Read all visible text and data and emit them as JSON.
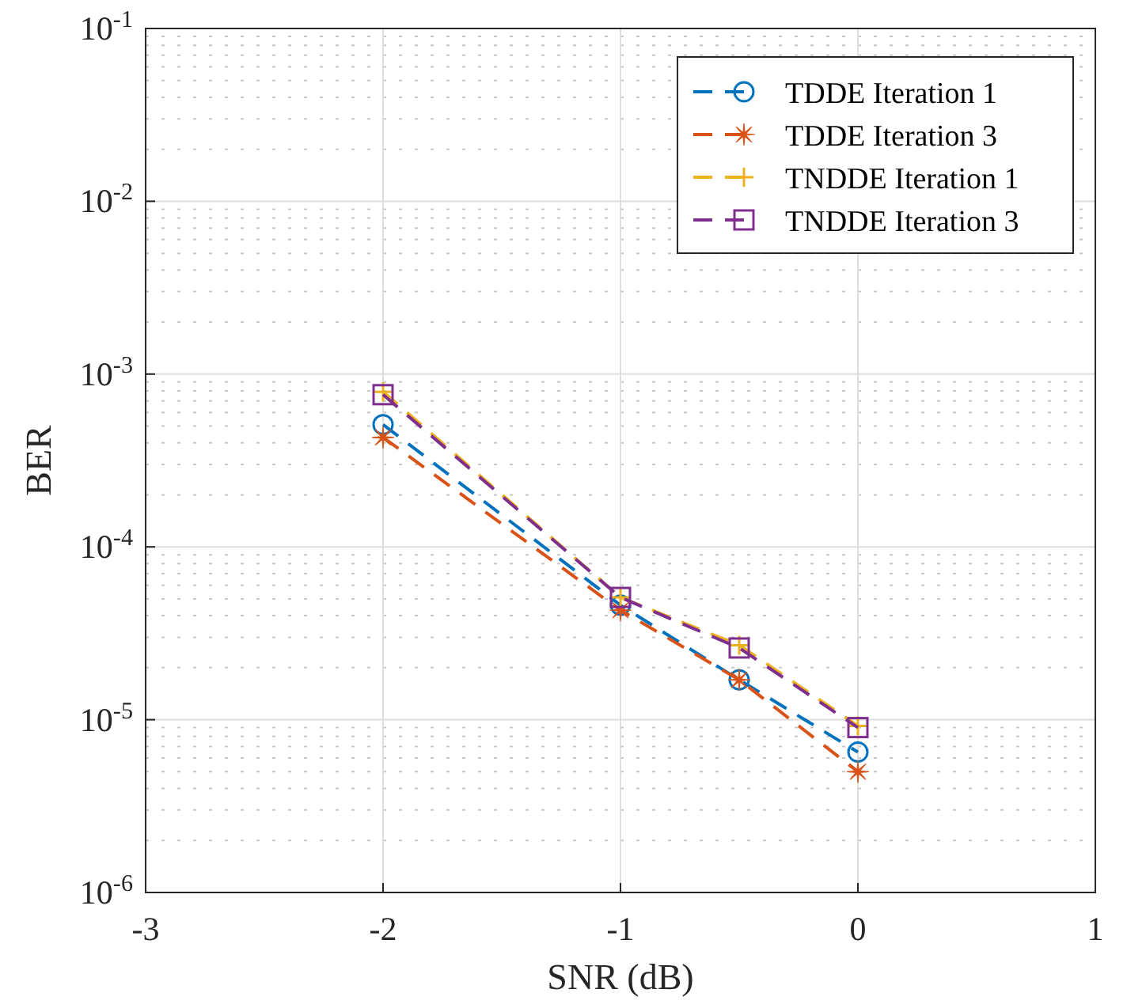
{
  "chart_data": {
    "type": "line",
    "xlabel": "SNR (dB)",
    "ylabel": "BER",
    "log": "y",
    "grid": true,
    "legend": "top right",
    "line_style": "dashed",
    "x": [
      -2,
      -1,
      -0.5,
      0
    ],
    "xlim": [
      -3,
      1
    ],
    "xticks": [
      -3,
      -2,
      -1,
      0,
      1
    ],
    "ylim": [
      1e-06,
      0.1
    ],
    "yticks": [
      {
        "value": 1e-06,
        "label": "10$^{-6}$"
      },
      {
        "value": 1e-05,
        "label": "10$^{-5}$"
      },
      {
        "value": 0.0001,
        "label": "10$^{-4}$"
      },
      {
        "value": 0.001,
        "label": "10$^{-3}$"
      },
      {
        "value": 0.01,
        "label": "10$^{-2}$"
      },
      {
        "value": 0.1,
        "label": "10$^{-1}$"
      }
    ],
    "series": [
      {
        "name": "TDDE Iteration 1",
        "color": "#0072bd",
        "marker": "circle",
        "values": [
          0.00051,
          4.6e-05,
          1.7e-05,
          6.5e-06
        ]
      },
      {
        "name": "TDDE Iteration 3",
        "color": "#d95319",
        "marker": "star",
        "values": [
          0.00043,
          4.3e-05,
          1.7e-05,
          5e-06
        ]
      },
      {
        "name": "TNDDE Iteration 1",
        "color": "#edb120",
        "marker": "cross",
        "values": [
          0.00079,
          5.1e-05,
          2.7e-05,
          9.2e-06
        ]
      },
      {
        "name": "TNDDE Iteration 3",
        "color": "#7e2f8e",
        "marker": "square",
        "values": [
          0.00076,
          5.1e-05,
          2.6e-05,
          9e-06
        ]
      }
    ]
  }
}
